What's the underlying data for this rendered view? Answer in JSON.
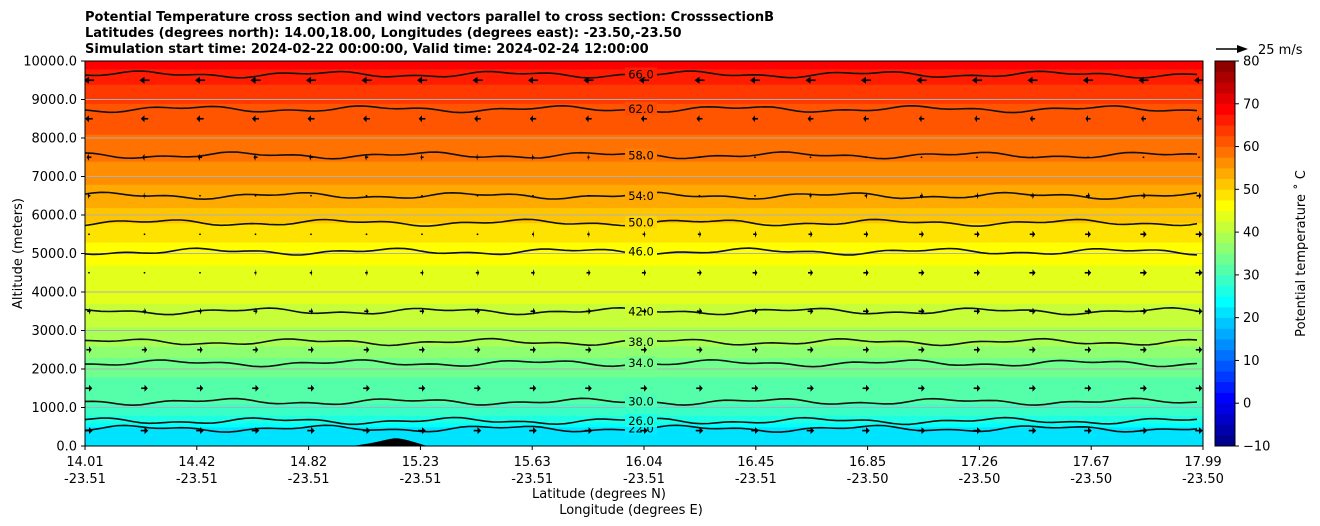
{
  "chart_data": {
    "type": "filled-contour with wind vectors",
    "title_lines": [
      "Potential Temperature cross section and wind vectors parallel to cross section: CrosssectionB",
      "Latitudes (degrees north): 14.00,18.00, Longitudes (degrees east): -23.50,-23.50",
      "Simulation start time: 2024-02-22 00:00:00, Valid time: 2024-02-24 12:00:00"
    ],
    "ylabel": "Altitude (meters)",
    "xlabel_lat": "Latitude (degrees N)",
    "xlabel_lon": "Longitude (degrees E)",
    "ylim": [
      0,
      10000
    ],
    "yticks": [
      "0.0",
      "1000.0",
      "2000.0",
      "3000.0",
      "4000.0",
      "5000.0",
      "6000.0",
      "7000.0",
      "8000.0",
      "9000.0",
      "10000.0"
    ],
    "xticks": [
      {
        "lat": "14.01",
        "lon": "-23.51"
      },
      {
        "lat": "14.42",
        "lon": "-23.51"
      },
      {
        "lat": "14.82",
        "lon": "-23.51"
      },
      {
        "lat": "15.23",
        "lon": "-23.51"
      },
      {
        "lat": "15.63",
        "lon": "-23.51"
      },
      {
        "lat": "16.04",
        "lon": "-23.51"
      },
      {
        "lat": "16.45",
        "lon": "-23.51"
      },
      {
        "lat": "16.85",
        "lon": "-23.50"
      },
      {
        "lat": "17.26",
        "lon": "-23.50"
      },
      {
        "lat": "17.67",
        "lon": "-23.50"
      },
      {
        "lat": "17.99",
        "lon": "-23.50"
      }
    ],
    "grid": "horizontal",
    "colorbar": {
      "label": "Potential temperature $^\\circ$C",
      "label_display": "Potential temperature ˚ C",
      "min": -10,
      "max": 80,
      "ticks": [
        "−10",
        "0",
        "10",
        "20",
        "30",
        "40",
        "50",
        "60",
        "70",
        "80"
      ],
      "colormap": "jet"
    },
    "quiver_key": "25 m/s",
    "contour_levels": [
      22,
      26,
      30,
      34,
      38,
      42,
      46,
      50,
      54,
      58,
      62,
      66
    ],
    "contour_labels": [
      "22.0",
      "26.0",
      "30.0",
      "34.0",
      "38.0",
      "42.0",
      "46.0",
      "50.0",
      "54.0",
      "58.0",
      "62.0",
      "66.0"
    ],
    "contour_heights_m": {
      "22": 450,
      "26": 650,
      "30": 1150,
      "34": 2150,
      "38": 2700,
      "42": 3500,
      "46": 5050,
      "50": 5800,
      "54": 6500,
      "58": 7550,
      "62": 8750,
      "66": 9650
    },
    "wind_profile": {
      "altitude_m": [
        0,
        2000,
        4000,
        5000,
        6000,
        7000,
        8000,
        9000,
        10000
      ],
      "u_west_ms": [
        9,
        7,
        3,
        0,
        -2,
        -4,
        -7,
        -10,
        -13
      ],
      "u_east_ms": [
        9,
        7,
        8,
        8,
        7,
        4,
        -2,
        -9,
        -14
      ]
    },
    "terrain": {
      "lat_range": [
        15.0,
        15.23
      ],
      "peak_altitude_m": 200
    }
  }
}
